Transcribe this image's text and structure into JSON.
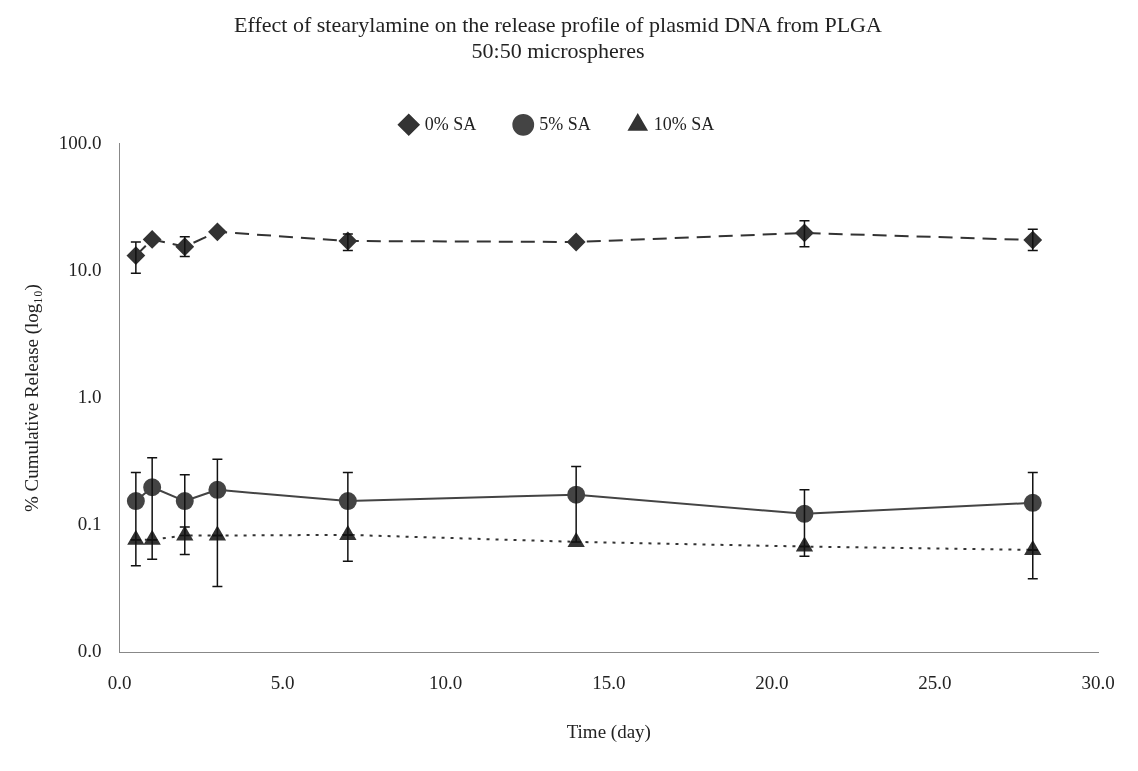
{
  "chart_data": {
    "type": "line",
    "title": "Effect of stearylamine on the release profile of plasmid DNA from PLGA 50:50 microspheres",
    "xlabel": "Time (day)",
    "ylabel": "% Cumulative Release (log₁₀)",
    "x": [
      0.5,
      1,
      2,
      3,
      7,
      14,
      21,
      28
    ],
    "series": [
      {
        "name": "0% SA",
        "color": "#333333",
        "marker": "diamond",
        "line_style": "dashed",
        "values": [
          13.2,
          17.7,
          15.5,
          20.3,
          17.2,
          16.9,
          19.9,
          17.5
        ],
        "errors": [
          [
            9.6,
            16.9
          ],
          null,
          [
            13.0,
            18.6
          ],
          null,
          [
            14.5,
            19.5
          ],
          null,
          [
            15.5,
            24.8
          ],
          [
            14.5,
            21.3
          ]
        ]
      },
      {
        "name": "5% SA",
        "color": "#444444",
        "marker": "circle",
        "line_style": "solid",
        "values": [
          0.155,
          0.199,
          0.155,
          0.19,
          0.155,
          0.174,
          0.123,
          0.15
        ],
        "errors": [
          [
            0.077,
            0.26
          ],
          [
            0.077,
            0.34
          ],
          [
            0.083,
            0.25
          ],
          [
            0.083,
            0.33
          ],
          [
            0.084,
            0.26
          ],
          [
            0.074,
            0.29
          ],
          [
            0.068,
            0.19
          ],
          [
            0.064,
            0.26
          ]
        ]
      },
      {
        "name": "10% SA",
        "color": "#333333",
        "marker": "triangle",
        "line_style": "dotted",
        "values": [
          0.077,
          0.077,
          0.083,
          0.083,
          0.084,
          0.074,
          0.068,
          0.064
        ],
        "errors": [
          [
            0.048,
            0.077
          ],
          [
            0.054,
            0.077
          ],
          [
            0.059,
            0.097
          ],
          [
            0.033,
            0.083
          ],
          [
            0.052,
            0.084
          ],
          null,
          [
            0.057,
            0.068
          ],
          [
            0.038,
            0.064
          ]
        ]
      }
    ],
    "log": "y",
    "xlim": [
      0,
      30
    ],
    "xticks": [
      {
        "value": 0,
        "label": "0.0"
      },
      {
        "value": 5,
        "label": "5.0"
      },
      {
        "value": 10,
        "label": "10.0"
      },
      {
        "value": 15,
        "label": "15.0"
      },
      {
        "value": 20,
        "label": "20.0"
      },
      {
        "value": 25,
        "label": "25.0"
      },
      {
        "value": 30,
        "label": "30.0"
      }
    ],
    "ylim": [
      0.01,
      100
    ],
    "yticks": [
      {
        "value": 0.01,
        "label": "0.0"
      },
      0.1,
      {
        "value": 1,
        "label": "1.0"
      },
      {
        "value": 10,
        "label": "10.0"
      },
      {
        "value": 100,
        "label": "100.0"
      }
    ],
    "grid": false,
    "legend": "top"
  }
}
